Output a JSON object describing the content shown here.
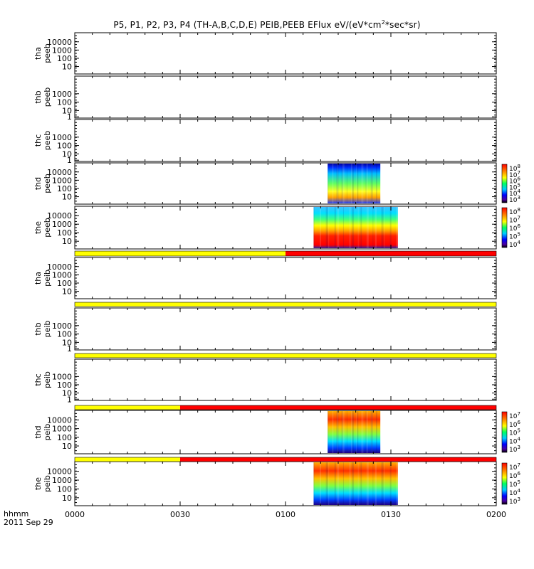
{
  "title_prefix": "P5, P1, P2, P3, P4 (TH-A,B,C,D,E) PEIB,PEEB EFlux eV/(eV*cm",
  "title_sup": "2",
  "title_suffix": "*sec*sr)",
  "footer": {
    "x_units": "hhmm",
    "date": "2011 Sep 29"
  },
  "colors": {
    "flag_yellow": "#ffff00",
    "flag_red": "#ff0000"
  },
  "chart_data": {
    "type": "heatmap",
    "time_axis": {
      "ticks": [
        "0000",
        "0030",
        "0100",
        "0130",
        "0200"
      ],
      "minor_per_major": 6
    },
    "panels": [
      {
        "probe": "tha",
        "product": "peeb",
        "yticks": [
          "10000",
          "1000",
          "100",
          "10"
        ],
        "has_data": false,
        "colorbar": false
      },
      {
        "probe": "thb",
        "product": "peeb",
        "yticks": [
          "1000",
          "100",
          "10",
          "1"
        ],
        "has_data": false,
        "colorbar": false
      },
      {
        "probe": "thc",
        "product": "peeb",
        "yticks": [
          "1000",
          "100",
          "10",
          "1"
        ],
        "has_data": false,
        "colorbar": false
      },
      {
        "probe": "thd",
        "product": "peeb",
        "yticks": [
          "10000",
          "1000",
          "100",
          "10"
        ],
        "has_data": true,
        "data_start": "0112",
        "data_end": "0127",
        "colorbar": true,
        "cbar_labels": [
          "8",
          "7",
          "6",
          "5",
          "4",
          "3"
        ]
      },
      {
        "probe": "the",
        "product": "peeb",
        "yticks": [
          "10000",
          "1000",
          "100",
          "10"
        ],
        "has_data": true,
        "data_start": "0108",
        "data_end": "0132",
        "colorbar": true,
        "cbar_labels": [
          "8",
          "7",
          "6",
          "5",
          "4"
        ]
      },
      {
        "probe": "tha",
        "product": "peib",
        "yticks": [
          "10000",
          "1000",
          "100",
          "10"
        ],
        "has_data": false,
        "colorbar": false
      },
      {
        "probe": "thb",
        "product": "peib",
        "yticks": [
          "1000",
          "100",
          "10",
          "1"
        ],
        "has_data": false,
        "colorbar": false
      },
      {
        "probe": "thc",
        "product": "peib",
        "yticks": [
          "1000",
          "100",
          "10",
          "1"
        ],
        "has_data": false,
        "colorbar": false
      },
      {
        "probe": "thd",
        "product": "peib",
        "yticks": [
          "10000",
          "1000",
          "100",
          "10"
        ],
        "has_data": true,
        "data_start": "0112",
        "data_end": "0127",
        "colorbar": true,
        "cbar_labels": [
          "7",
          "6",
          "5",
          "4",
          "3"
        ]
      },
      {
        "probe": "the",
        "product": "peib",
        "yticks": [
          "10000",
          "1000",
          "100",
          "10"
        ],
        "has_data": true,
        "data_start": "0108",
        "data_end": "0132",
        "colorbar": true,
        "cbar_labels": [
          "7",
          "6",
          "5",
          "4",
          "3"
        ]
      }
    ],
    "flag_bars": [
      {
        "after_panel": 4,
        "segments": [
          {
            "from": "0000",
            "to": "0100",
            "color": "yellow"
          },
          {
            "from": "0100",
            "to": "0200",
            "color": "red"
          }
        ]
      },
      {
        "after_panel": 5,
        "segments": [
          {
            "from": "0000",
            "to": "0200",
            "color": "yellow"
          }
        ]
      },
      {
        "after_panel": 6,
        "segments": [
          {
            "from": "0000",
            "to": "0200",
            "color": "yellow"
          }
        ]
      },
      {
        "after_panel": 7,
        "segments": [
          {
            "from": "0000",
            "to": "0030",
            "color": "yellow"
          },
          {
            "from": "0030",
            "to": "0200",
            "color": "red"
          }
        ]
      },
      {
        "after_panel": 8,
        "segments": [
          {
            "from": "0000",
            "to": "0030",
            "color": "yellow"
          },
          {
            "from": "0030",
            "to": "0200",
            "color": "red"
          }
        ]
      }
    ]
  }
}
